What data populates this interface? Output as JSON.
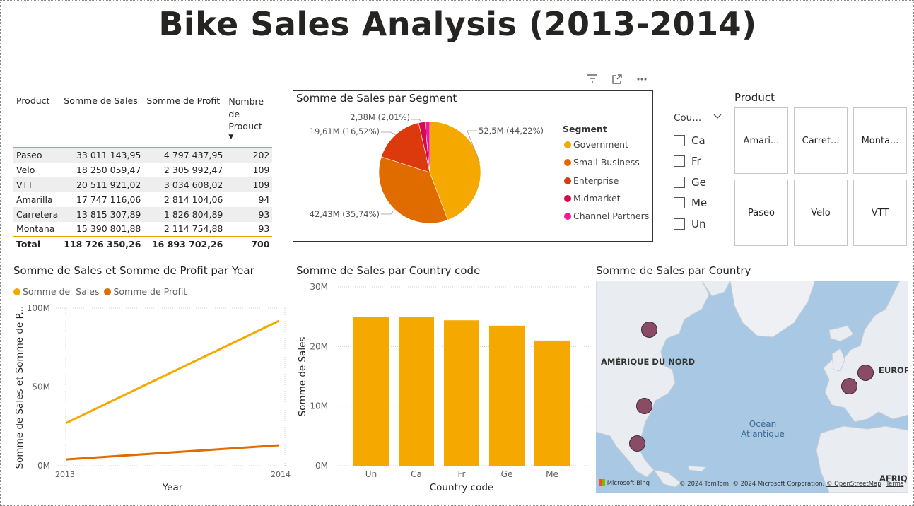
{
  "title": "Bike Sales Analysis (2013-2014)",
  "header_icons": [
    "filter-icon",
    "focus-mode-icon",
    "more-options-icon"
  ],
  "table": {
    "columns": [
      "Product",
      "Somme de Sales",
      "Somme de Profit",
      "Nombre de Product"
    ],
    "sort_indicator": "▼",
    "rows": [
      {
        "product": "Paseo",
        "sales": "33 011 143,95",
        "profit": "4 797 437,95",
        "count": "202"
      },
      {
        "product": "Velo",
        "sales": "18 250 059,47",
        "profit": "2 305 992,47",
        "count": "109"
      },
      {
        "product": "VTT",
        "sales": "20 511 921,02",
        "profit": "3 034 608,02",
        "count": "109"
      },
      {
        "product": "Amarilla",
        "sales": "17 747 116,06",
        "profit": "2 814 104,06",
        "count": "94"
      },
      {
        "product": "Carretera",
        "sales": "13 815 307,89",
        "profit": "1 826 804,89",
        "count": "93"
      },
      {
        "product": "Montana",
        "sales": "15 390 801,88",
        "profit": "2 114 754,88",
        "count": "93"
      }
    ],
    "total": {
      "label": "Total",
      "sales": "118 726 350,26",
      "profit": "16 893 702,26",
      "count": "700"
    }
  },
  "pie_title": "Somme de Sales par Segment",
  "slicer": {
    "title": "Cou...",
    "chevron": "⌵",
    "items": [
      "Ca",
      "Fr",
      "Ge",
      "Me",
      "Un"
    ]
  },
  "product_tiles": {
    "title": "Product",
    "items": [
      "Amari...",
      "Carret...",
      "Monta...",
      "Paseo",
      "Velo",
      "VTT"
    ]
  },
  "map": {
    "title": "Somme de Sales par Country",
    "labels": {
      "north_america": "AMÉRIQUE DU NORD",
      "europe": "EUROPE",
      "africa": "AFRIQU",
      "ocean": "Océan\nAtlantique"
    },
    "logo": "Microsoft Bing",
    "copyright": "© 2024 TomTom, © 2024 Microsoft Corporation,",
    "osm": "© OpenStreetMap",
    "terms": "Terms"
  },
  "chart_data": [
    {
      "type": "pie",
      "title": "Somme de Sales par Segment",
      "legend_title": "Segment",
      "legend_position": "right",
      "slices": [
        {
          "name": "Government",
          "value": 52.5,
          "label": "52,5M (44,22%)",
          "color": "#F5A800"
        },
        {
          "name": "Small Business",
          "value": 42.43,
          "label": "42,43M (35,74%)",
          "color": "#E06C00"
        },
        {
          "name": "Enterprise",
          "value": 19.61,
          "label": "19,61M (16,52%)",
          "color": "#DC3A0C"
        },
        {
          "name": "Midmarket",
          "value": 2.38,
          "label": "2,38M (2,01%)",
          "color": "#D40A50"
        },
        {
          "name": "Channel Partners",
          "value": 1.8,
          "label": "",
          "color": "#EE1C9A"
        }
      ]
    },
    {
      "type": "line",
      "title": "Somme de Sales et Somme de Profit par Year",
      "xlabel": "Year",
      "ylabel": "Somme de Sales et Somme de P...",
      "x": [
        "2013",
        "2014"
      ],
      "yticks": [
        "0M",
        "50M",
        "100M"
      ],
      "ylim": [
        0,
        100
      ],
      "series": [
        {
          "name": "Somme de  Sales",
          "values": [
            27,
            92
          ],
          "color": "#F5A800"
        },
        {
          "name": "Somme de Profit",
          "values": [
            4,
            13
          ],
          "color": "#E06C00"
        }
      ],
      "legend_position": "top-left",
      "grid": true
    },
    {
      "type": "bar",
      "title": "Somme de Sales par Country code",
      "xlabel": "Country code",
      "ylabel": "Somme de Sales",
      "categories": [
        "Un",
        "Ca",
        "Fr",
        "Ge",
        "Me"
      ],
      "values": [
        25.0,
        24.9,
        24.4,
        23.5,
        21.0
      ],
      "yticks": [
        "0M",
        "10M",
        "20M",
        "30M"
      ],
      "ylim": [
        0,
        30
      ],
      "color": "#F5A800",
      "grid": true
    }
  ]
}
